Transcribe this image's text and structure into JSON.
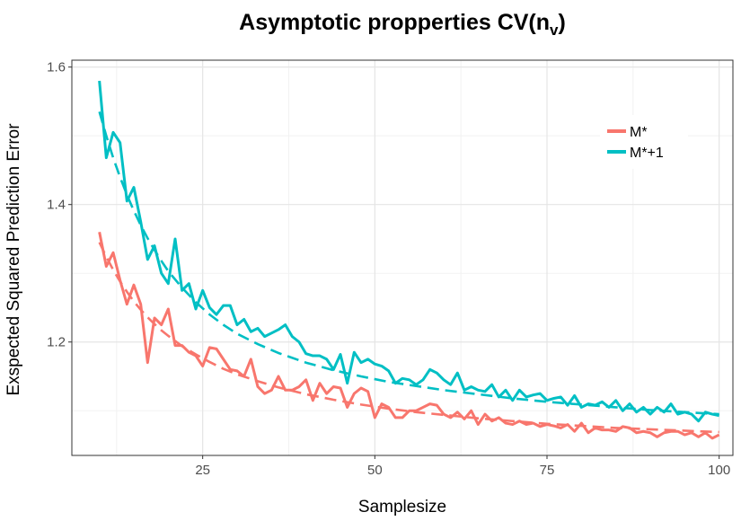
{
  "chart_data": {
    "type": "line",
    "title": "Asymptotic propperties CV(n",
    "title_subscript": "v",
    "title_suffix": ")",
    "xlabel": "Samplesize",
    "ylabel": "Exspected Squared Prediction Error",
    "xlim": [
      6,
      102
    ],
    "ylim": [
      1.035,
      1.61
    ],
    "x_ticks": [
      25,
      50,
      75,
      100
    ],
    "y_ticks": [
      1.2,
      1.4,
      1.6
    ],
    "x_tick_labels": [
      "25",
      "50",
      "75",
      "100"
    ],
    "y_tick_labels": [
      "1.2",
      "1.4",
      "1.6"
    ],
    "grid": true,
    "legend_position": "top-right",
    "series": [
      {
        "name": "M*",
        "color": "#F8766D",
        "x": [
          10,
          11,
          12,
          13,
          14,
          15,
          16,
          17,
          18,
          19,
          20,
          21,
          22,
          23,
          24,
          25,
          26,
          27,
          28,
          29,
          30,
          31,
          32,
          33,
          34,
          35,
          36,
          37,
          38,
          39,
          40,
          41,
          42,
          43,
          44,
          45,
          46,
          47,
          48,
          49,
          50,
          51,
          52,
          53,
          54,
          55,
          56,
          57,
          58,
          59,
          60,
          61,
          62,
          63,
          64,
          65,
          66,
          67,
          68,
          69,
          70,
          71,
          72,
          73,
          74,
          75,
          76,
          77,
          78,
          79,
          80,
          81,
          82,
          83,
          84,
          85,
          86,
          87,
          88,
          89,
          90,
          91,
          92,
          93,
          94,
          95,
          96,
          97,
          98,
          99,
          100
        ],
        "y": [
          1.36,
          1.31,
          1.33,
          1.29,
          1.255,
          1.283,
          1.255,
          1.17,
          1.235,
          1.225,
          1.248,
          1.195,
          1.195,
          1.185,
          1.18,
          1.165,
          1.192,
          1.19,
          1.175,
          1.16,
          1.158,
          1.15,
          1.175,
          1.135,
          1.125,
          1.13,
          1.15,
          1.13,
          1.13,
          1.135,
          1.145,
          1.115,
          1.14,
          1.125,
          1.135,
          1.133,
          1.105,
          1.125,
          1.133,
          1.128,
          1.09,
          1.11,
          1.105,
          1.09,
          1.09,
          1.1,
          1.1,
          1.105,
          1.11,
          1.108,
          1.095,
          1.09,
          1.098,
          1.088,
          1.1,
          1.08,
          1.095,
          1.085,
          1.09,
          1.082,
          1.08,
          1.085,
          1.08,
          1.082,
          1.077,
          1.08,
          1.078,
          1.075,
          1.08,
          1.07,
          1.082,
          1.068,
          1.075,
          1.072,
          1.072,
          1.07,
          1.077,
          1.075,
          1.068,
          1.07,
          1.068,
          1.062,
          1.068,
          1.07,
          1.07,
          1.065,
          1.068,
          1.062,
          1.068,
          1.06,
          1.065
        ],
        "fit_x": [
          10,
          11,
          12,
          13,
          14,
          15,
          16,
          17,
          18,
          19,
          20,
          22,
          24,
          26,
          28,
          30,
          33,
          36,
          40,
          44,
          48,
          52,
          56,
          60,
          65,
          70,
          75,
          80,
          85,
          90,
          95,
          100
        ],
        "fit_y": [
          1.345,
          1.324,
          1.305,
          1.288,
          1.273,
          1.259,
          1.247,
          1.236,
          1.226,
          1.217,
          1.209,
          1.194,
          1.182,
          1.171,
          1.161,
          1.153,
          1.143,
          1.134,
          1.124,
          1.116,
          1.109,
          1.103,
          1.098,
          1.094,
          1.089,
          1.085,
          1.081,
          1.078,
          1.075,
          1.073,
          1.071,
          1.069
        ]
      },
      {
        "name": "M*+1",
        "color": "#00BFC4",
        "x": [
          10,
          11,
          12,
          13,
          14,
          15,
          16,
          17,
          18,
          19,
          20,
          21,
          22,
          23,
          24,
          25,
          26,
          27,
          28,
          29,
          30,
          31,
          32,
          33,
          34,
          35,
          36,
          37,
          38,
          39,
          40,
          41,
          42,
          43,
          44,
          45,
          46,
          47,
          48,
          49,
          50,
          51,
          52,
          53,
          54,
          55,
          56,
          57,
          58,
          59,
          60,
          61,
          62,
          63,
          64,
          65,
          66,
          67,
          68,
          69,
          70,
          71,
          72,
          73,
          74,
          75,
          76,
          77,
          78,
          79,
          80,
          81,
          82,
          83,
          84,
          85,
          86,
          87,
          88,
          89,
          90,
          91,
          92,
          93,
          94,
          95,
          96,
          97,
          98,
          99,
          100
        ],
        "y": [
          1.58,
          1.468,
          1.505,
          1.49,
          1.405,
          1.425,
          1.375,
          1.32,
          1.34,
          1.3,
          1.285,
          1.35,
          1.275,
          1.285,
          1.248,
          1.275,
          1.25,
          1.24,
          1.253,
          1.253,
          1.225,
          1.233,
          1.215,
          1.22,
          1.208,
          1.213,
          1.218,
          1.225,
          1.208,
          1.2,
          1.183,
          1.18,
          1.18,
          1.175,
          1.16,
          1.182,
          1.14,
          1.185,
          1.17,
          1.175,
          1.168,
          1.165,
          1.158,
          1.14,
          1.147,
          1.145,
          1.138,
          1.145,
          1.16,
          1.155,
          1.145,
          1.138,
          1.155,
          1.13,
          1.135,
          1.13,
          1.128,
          1.138,
          1.12,
          1.13,
          1.115,
          1.13,
          1.12,
          1.123,
          1.125,
          1.115,
          1.118,
          1.12,
          1.108,
          1.122,
          1.105,
          1.11,
          1.108,
          1.113,
          1.105,
          1.115,
          1.1,
          1.11,
          1.098,
          1.105,
          1.095,
          1.105,
          1.098,
          1.11,
          1.095,
          1.098,
          1.095,
          1.085,
          1.098,
          1.095,
          1.093
        ],
        "fit_x": [
          10,
          11,
          12,
          13,
          14,
          15,
          16,
          17,
          18,
          19,
          20,
          22,
          24,
          26,
          28,
          30,
          33,
          36,
          40,
          44,
          48,
          52,
          56,
          60,
          65,
          70,
          75,
          80,
          85,
          90,
          95,
          100
        ],
        "fit_y": [
          1.535,
          1.5,
          1.468,
          1.44,
          1.414,
          1.391,
          1.37,
          1.351,
          1.334,
          1.318,
          1.303,
          1.279,
          1.258,
          1.24,
          1.225,
          1.212,
          1.197,
          1.184,
          1.17,
          1.159,
          1.15,
          1.142,
          1.136,
          1.13,
          1.124,
          1.118,
          1.113,
          1.109,
          1.105,
          1.101,
          1.098,
          1.095
        ]
      }
    ]
  }
}
